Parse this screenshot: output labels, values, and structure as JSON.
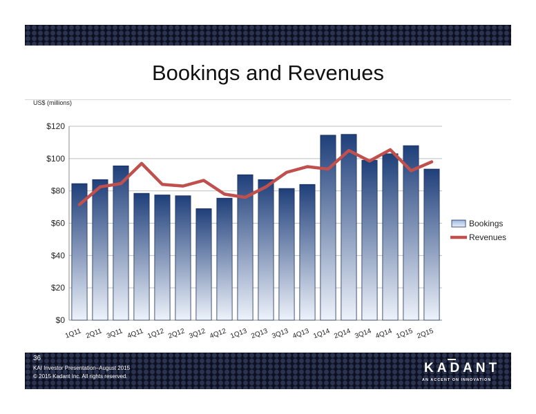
{
  "slide": {
    "title": "Bookings and Revenues",
    "units_label": "US$ (millions)",
    "page_number": "36",
    "footer_line1": "KAI Investor Presentation–August 2015",
    "footer_line2": "© 2015 Kadant Inc. All rights reserved.",
    "logo_text": "KADANT",
    "logo_tagline": "AN ACCENT ON INNOVATION"
  },
  "chart_data": {
    "type": "bar",
    "categories": [
      "1Q11",
      "2Q11",
      "3Q11",
      "4Q11",
      "1Q12",
      "2Q12",
      "3Q12",
      "4Q12",
      "1Q13",
      "2Q13",
      "3Q13",
      "4Q13",
      "1Q14",
      "2Q14",
      "3Q14",
      "4Q14",
      "1Q15",
      "2Q15"
    ],
    "series": [
      {
        "name": "Bookings",
        "type": "bar",
        "values": [
          84.5,
          87,
          95.5,
          78.5,
          77.5,
          77,
          69,
          75.5,
          90,
          87,
          81.5,
          84,
          114.5,
          115,
          99,
          103,
          108,
          93.5
        ]
      },
      {
        "name": "Revenues",
        "type": "line",
        "values": [
          71.5,
          82.5,
          84.5,
          97,
          84,
          83,
          86.5,
          78,
          76,
          82.5,
          91.5,
          95,
          93.5,
          105,
          98.5,
          105.5,
          92.5,
          98
        ]
      }
    ],
    "y_ticks": [
      "$0",
      "$20",
      "$40",
      "$60",
      "$80",
      "$100",
      "$120"
    ],
    "ylim": [
      0,
      120
    ],
    "grid": true,
    "legend_position": "right",
    "colors": {
      "bookings_top": "#1f3f7a",
      "bookings_bottom": "#eef3fb",
      "revenues": "#c0504d"
    }
  }
}
